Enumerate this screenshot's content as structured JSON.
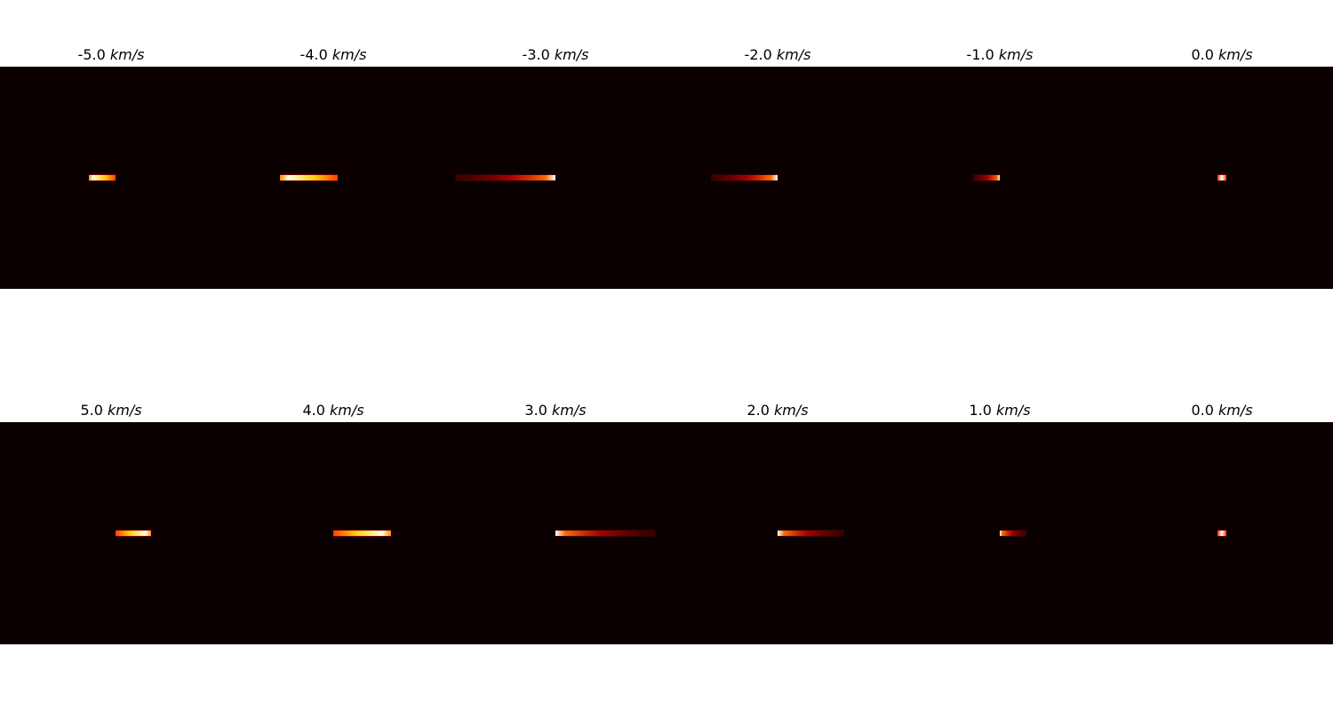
{
  "chart_data": {
    "type": "heatmap",
    "colormap": "hot",
    "background_color": "#0b0000",
    "unit": "km/s",
    "rows": [
      {
        "panels": [
          {
            "title": "-5.0",
            "streak": {
              "start": -0.1,
              "end": 0.02,
              "peak": -0.02,
              "gradient": "hot-to-left"
            }
          },
          {
            "title": "-4.0",
            "streak": {
              "start": -0.24,
              "end": 0.02,
              "peak": -0.1,
              "gradient": "hot-to-left"
            }
          },
          {
            "title": "-3.0",
            "streak": {
              "start": -0.45,
              "end": 0.0,
              "peak": -0.03,
              "gradient": "fade-left"
            }
          },
          {
            "title": "-2.0",
            "streak": {
              "start": -0.3,
              "end": 0.0,
              "peak": -0.02,
              "gradient": "fade-left"
            }
          },
          {
            "title": "-1.0",
            "streak": {
              "start": -0.12,
              "end": 0.0,
              "peak": -0.01,
              "gradient": "fade-left"
            }
          },
          {
            "title": "0.0",
            "streak": {
              "start": -0.02,
              "end": 0.02,
              "peak": 0.0,
              "gradient": "point"
            }
          }
        ]
      },
      {
        "panels": [
          {
            "title": "5.0",
            "streak": {
              "start": 0.02,
              "end": 0.18,
              "peak": 0.12,
              "gradient": "hot-to-right"
            }
          },
          {
            "title": "4.0",
            "streak": {
              "start": 0.0,
              "end": 0.26,
              "peak": 0.22,
              "gradient": "hot-to-right"
            }
          },
          {
            "title": "3.0",
            "streak": {
              "start": 0.0,
              "end": 0.45,
              "peak": 0.03,
              "gradient": "fade-right"
            }
          },
          {
            "title": "2.0",
            "streak": {
              "start": 0.0,
              "end": 0.3,
              "peak": 0.02,
              "gradient": "fade-right"
            }
          },
          {
            "title": "1.0",
            "streak": {
              "start": 0.0,
              "end": 0.12,
              "peak": 0.01,
              "gradient": "fade-right"
            }
          },
          {
            "title": "0.0",
            "streak": {
              "start": -0.02,
              "end": 0.02,
              "peak": 0.0,
              "gradient": "point"
            }
          }
        ]
      }
    ]
  }
}
